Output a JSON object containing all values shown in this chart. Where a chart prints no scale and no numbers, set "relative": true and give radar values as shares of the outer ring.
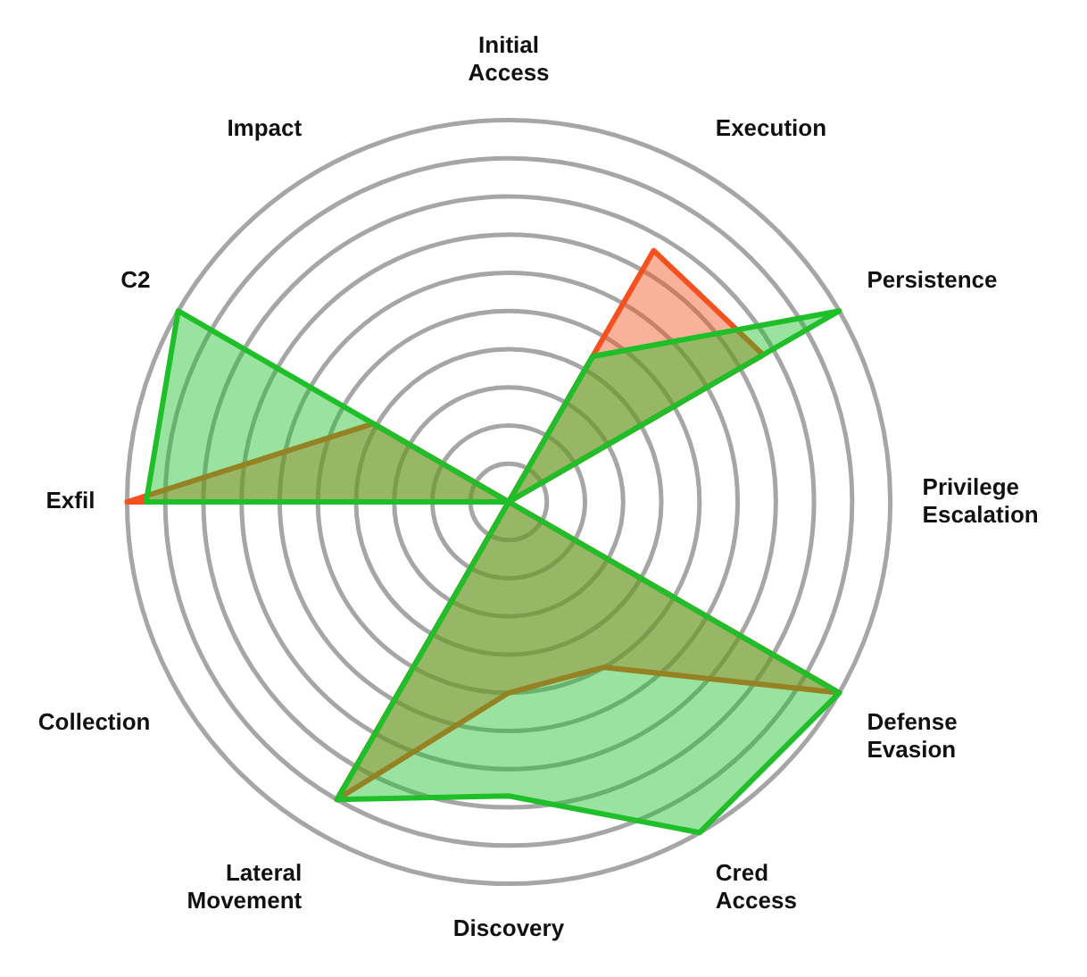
{
  "chart_data": {
    "type": "radar",
    "relative": true,
    "categories": [
      "Initial Access",
      "Execution",
      "Persistence",
      "Privilege Escalation",
      "Defense Evasion",
      "Cred Access",
      "Discovery",
      "Lateral Movement",
      "Collection",
      "Exfil",
      "C2",
      "Impact"
    ],
    "series": [
      {
        "color": "#f4511e",
        "values": [
          0,
          0.76,
          0.77,
          0,
          1.0,
          0.5,
          0.5,
          0.9,
          0,
          1.0,
          0.41,
          0
        ]
      },
      {
        "color": "#1fbf2a",
        "values": [
          0,
          0.44,
          1.0,
          0,
          1.0,
          1.0,
          0.77,
          0.9,
          0,
          0.95,
          1.0,
          0
        ]
      }
    ],
    "grid": true,
    "legend": false,
    "marker": "none"
  }
}
